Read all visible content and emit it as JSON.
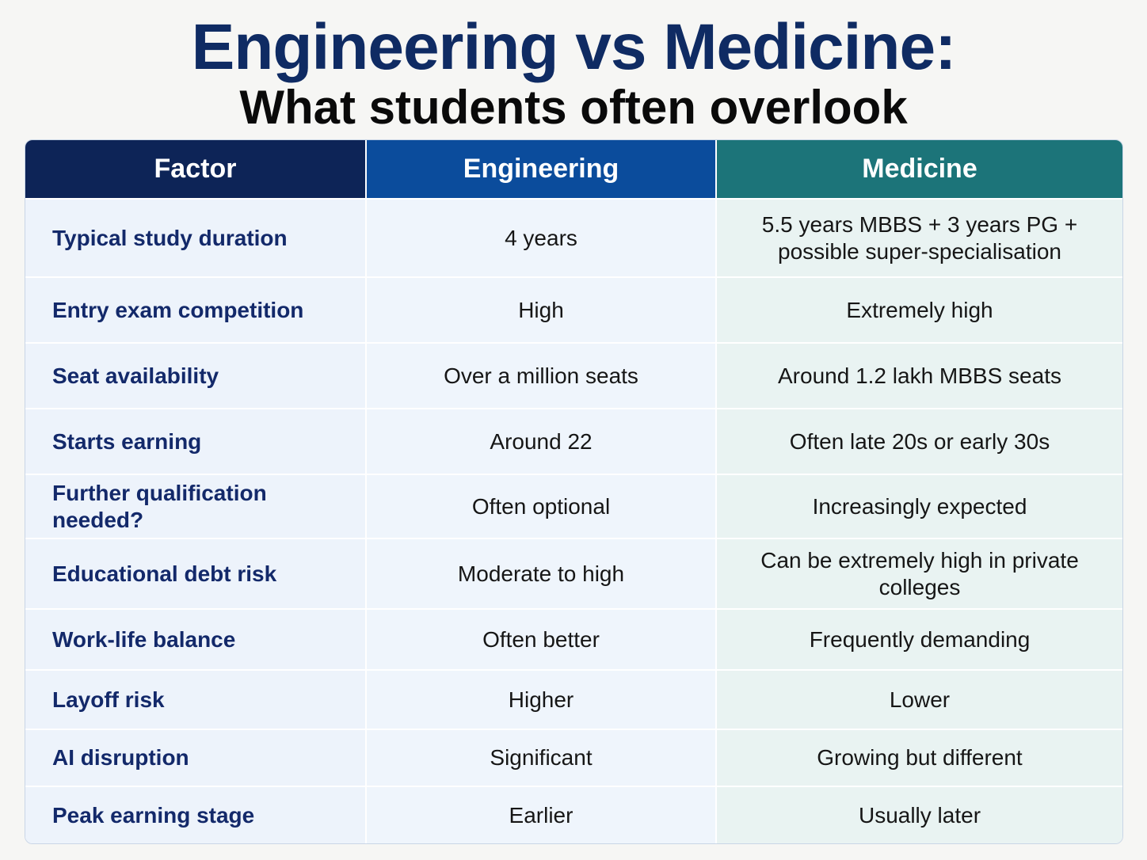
{
  "title": "Engineering vs Medicine:",
  "subtitle": "What students often overlook",
  "colors": {
    "title": "#0f2b63",
    "factor_header": "#0d2457",
    "engineering_header": "#0b4c9c",
    "medicine_header": "#1c7479"
  },
  "table": {
    "headers": [
      "Factor",
      "Engineering",
      "Medicine"
    ],
    "rows": [
      {
        "factor": "Typical study duration",
        "engineering": "4 years",
        "medicine": "5.5 years MBBS + 3 years PG + possible super-specialisation"
      },
      {
        "factor": "Entry exam competition",
        "engineering": "High",
        "medicine": "Extremely high"
      },
      {
        "factor": "Seat availability",
        "engineering": "Over a million seats",
        "medicine": "Around 1.2 lakh MBBS seats"
      },
      {
        "factor": "Starts earning",
        "engineering": "Around 22",
        "medicine": "Often late 20s or early 30s"
      },
      {
        "factor": "Further qualification needed?",
        "engineering": "Often optional",
        "medicine": "Increasingly expected"
      },
      {
        "factor": "Educational debt risk",
        "engineering": "Moderate to high",
        "medicine": "Can be extremely high in private colleges"
      },
      {
        "factor": "Work-life balance",
        "engineering": "Often better",
        "medicine": "Frequently demanding"
      },
      {
        "factor": "Layoff risk",
        "engineering": "Higher",
        "medicine": "Lower"
      },
      {
        "factor": "AI disruption",
        "engineering": "Significant",
        "medicine": "Growing but different"
      },
      {
        "factor": "Peak earning stage",
        "engineering": "Earlier",
        "medicine": "Usually later"
      }
    ]
  }
}
